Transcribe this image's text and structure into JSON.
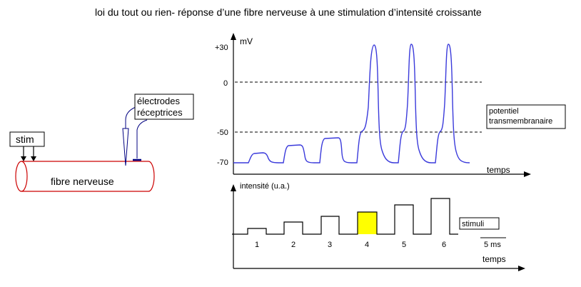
{
  "title": "loi du tout ou rien- réponse d’une fibre nerveuse à une stimulation d’intensité croissante",
  "left": {
    "stim_label": "stim",
    "fiber_label": "fibre nerveuse",
    "electrodes_label_line1": "électrodes",
    "electrodes_label_line2": "réceptrices"
  },
  "membrane_chart": {
    "y_unit": "mV",
    "y_ticks": [
      "+30",
      "0",
      "-50",
      "-70"
    ],
    "x_label": "temps",
    "legend_line1": "potentiel",
    "legend_line2": "transmembranaire",
    "resting_mV": -70,
    "threshold_mV": -50,
    "peak_mV": 30,
    "responses": [
      {
        "stimulus": 1,
        "type": "subthreshold",
        "peak_mV": -65
      },
      {
        "stimulus": 2,
        "type": "subthreshold",
        "peak_mV": -60
      },
      {
        "stimulus": 3,
        "type": "subthreshold",
        "peak_mV": -56
      },
      {
        "stimulus": 4,
        "type": "action_potential",
        "peak_mV": 30
      },
      {
        "stimulus": 5,
        "type": "action_potential",
        "peak_mV": 30
      },
      {
        "stimulus": 6,
        "type": "action_potential",
        "peak_mV": 30
      }
    ],
    "trace_color": "#3a3adb"
  },
  "stimulus_chart": {
    "y_label": "intensité (u.a.)",
    "x_label": "temps",
    "legend": "stimuli",
    "scale_label": "5 ms",
    "stimuli": [
      {
        "label": "1",
        "relative_intensity": 1,
        "highlighted": false
      },
      {
        "label": "2",
        "relative_intensity": 2,
        "highlighted": false
      },
      {
        "label": "3",
        "relative_intensity": 3,
        "highlighted": false
      },
      {
        "label": "4",
        "relative_intensity": 4,
        "highlighted": true
      },
      {
        "label": "5",
        "relative_intensity": 5,
        "highlighted": false
      },
      {
        "label": "6",
        "relative_intensity": 6,
        "highlighted": false
      }
    ],
    "highlight_color": "#ffff00"
  },
  "colors": {
    "fiber": "#cc0000",
    "electrode": "#000080"
  }
}
